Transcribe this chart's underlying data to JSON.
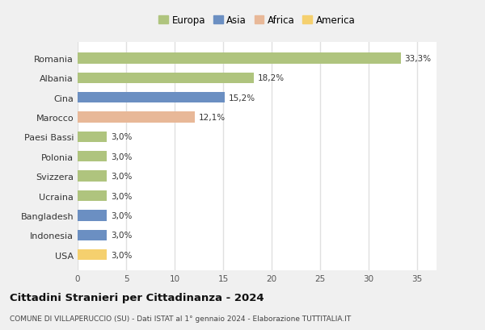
{
  "countries": [
    "Romania",
    "Albania",
    "Cina",
    "Marocco",
    "Paesi Bassi",
    "Polonia",
    "Svizzera",
    "Ucraina",
    "Bangladesh",
    "Indonesia",
    "USA"
  ],
  "values": [
    33.3,
    18.2,
    15.2,
    12.1,
    3.0,
    3.0,
    3.0,
    3.0,
    3.0,
    3.0,
    3.0
  ],
  "labels": [
    "33,3%",
    "18,2%",
    "15,2%",
    "12,1%",
    "3,0%",
    "3,0%",
    "3,0%",
    "3,0%",
    "3,0%",
    "3,0%",
    "3,0%"
  ],
  "colors": [
    "#afc47e",
    "#afc47e",
    "#6b8fc2",
    "#e8b898",
    "#afc47e",
    "#afc47e",
    "#afc47e",
    "#afc47e",
    "#6b8fc2",
    "#6b8fc2",
    "#f5d06e"
  ],
  "legend_labels": [
    "Europa",
    "Asia",
    "Africa",
    "America"
  ],
  "legend_colors": [
    "#afc47e",
    "#6b8fc2",
    "#e8b898",
    "#f5d06e"
  ],
  "xlim": [
    0,
    37
  ],
  "xticks": [
    0,
    5,
    10,
    15,
    20,
    25,
    30,
    35
  ],
  "title": "Cittadini Stranieri per Cittadinanza - 2024",
  "subtitle": "COMUNE DI VILLAPERUCCIO (SU) - Dati ISTAT al 1° gennaio 2024 - Elaborazione TUTTITALIA.IT",
  "fig_bg_color": "#f0f0f0",
  "plot_bg_color": "#ffffff",
  "grid_color": "#e0e0e0",
  "bar_height": 0.55
}
